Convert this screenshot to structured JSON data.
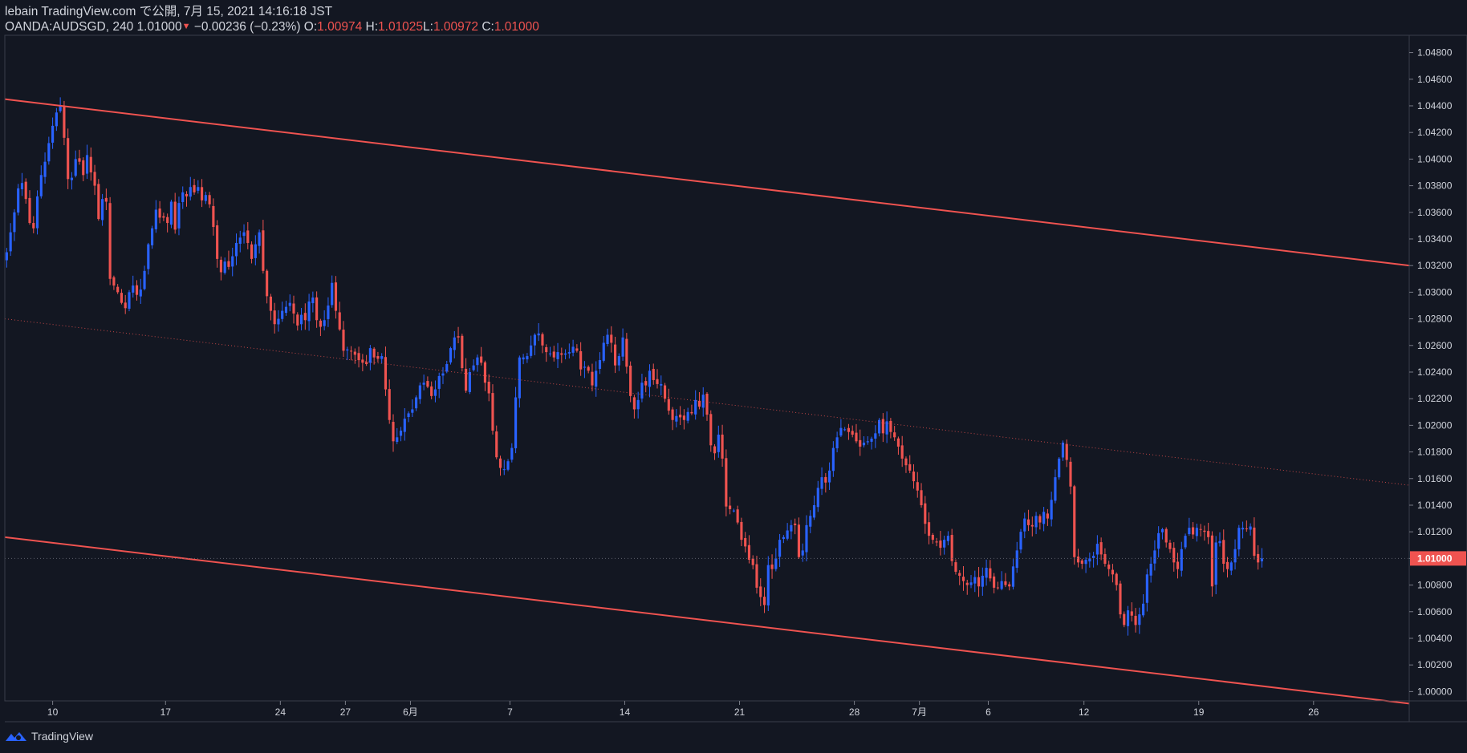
{
  "header": {
    "publish_line": "lebain TradingView.com で公開, 7月 15, 2021 14:16:18 JST",
    "symbol": "OANDA:AUDSGD, 240",
    "last": "1.01000",
    "change": "−0.00236 (−0.23%)",
    "o_label": "O:",
    "o_value": "1.00974",
    "h_label": "H:",
    "h_value": "1.01025",
    "l_label": "L:",
    "l_value": "1.00972",
    "c_label": "C:",
    "c_value": "1.01000"
  },
  "footer": {
    "brand": "TradingView"
  },
  "colors": {
    "background": "#131722",
    "up": "#2962ff",
    "down": "#ef5350",
    "trendline": "#ef5350",
    "axis_text": "#d1d4dc",
    "price_tag_bg": "#ef5350"
  },
  "chart_data": {
    "type": "candlestick",
    "title": "OANDA:AUDSGD, 240",
    "ylim": [
      0.9993,
      1.0493
    ],
    "y_ticks": [
      "1.04800",
      "1.04600",
      "1.04400",
      "1.04200",
      "1.04000",
      "1.03800",
      "1.03600",
      "1.03400",
      "1.03200",
      "1.03000",
      "1.02800",
      "1.02600",
      "1.02400",
      "1.02200",
      "1.02000",
      "1.01800",
      "1.01600",
      "1.01400",
      "1.01200",
      "1.01000",
      "1.00800",
      "1.00600",
      "1.00400",
      "1.00200",
      "1.00000"
    ],
    "current_price": "1.01000",
    "x_ticks": [
      {
        "label": "10",
        "bar": 12.5
      },
      {
        "label": "17",
        "bar": 42
      },
      {
        "label": "24",
        "bar": 72
      },
      {
        "label": "27",
        "bar": 89
      },
      {
        "label": "6月",
        "bar": 106
      },
      {
        "label": "7",
        "bar": 132
      },
      {
        "label": "14",
        "bar": 162
      },
      {
        "label": "21",
        "bar": 192
      },
      {
        "label": "28",
        "bar": 222
      },
      {
        "label": "7月",
        "bar": 239
      },
      {
        "label": "6",
        "bar": 257
      },
      {
        "label": "12",
        "bar": 282
      },
      {
        "label": "19",
        "bar": 312
      },
      {
        "label": "26",
        "bar": 342
      }
    ],
    "bars_visible": 367,
    "trendlines": [
      {
        "name": "channel-upper",
        "from": {
          "bar": 0,
          "price": 1.0445
        },
        "to": {
          "bar": 367,
          "price": 1.032
        },
        "style": "solid"
      },
      {
        "name": "channel-lower",
        "from": {
          "bar": 0,
          "price": 1.0116
        },
        "to": {
          "bar": 367,
          "price": 0.9991
        },
        "style": "solid"
      },
      {
        "name": "channel-middle",
        "from": {
          "bar": 0,
          "price": 1.028
        },
        "to": {
          "bar": 367,
          "price": 1.0155
        },
        "style": "dotted"
      }
    ],
    "closes": [
      1.033,
      1.0345,
      1.036,
      1.0378,
      1.0382,
      1.037,
      1.0352,
      1.0348,
      1.0372,
      1.0388,
      1.0398,
      1.0412,
      1.0425,
      1.0435,
      1.044,
      1.0416,
      1.0385,
      1.0386,
      1.04,
      1.0398,
      1.0388,
      1.0403,
      1.039,
      1.038,
      1.0355,
      1.037,
      1.0368,
      1.031,
      1.0305,
      1.03,
      1.0292,
      1.0288,
      1.03,
      1.0305,
      1.0298,
      1.0302,
      1.0316,
      1.0336,
      1.0348,
      1.0362,
      1.0356,
      1.0356,
      1.0352,
      1.0368,
      1.0347,
      1.0367,
      1.0375,
      1.0372,
      1.0379,
      1.0375,
      1.0379,
      1.0369,
      1.0373,
      1.0366,
      1.0349,
      1.0325,
      1.0315,
      1.0323,
      1.0319,
      1.0327,
      1.0337,
      1.0341,
      1.0345,
      1.0337,
      1.0325,
      1.0336,
      1.0345,
      1.0316,
      1.0297,
      1.0286,
      1.0276,
      1.028,
      1.0286,
      1.0289,
      1.0292,
      1.0284,
      1.0275,
      1.0283,
      1.0279,
      1.0293,
      1.0296,
      1.0279,
      1.0274,
      1.0279,
      1.029,
      1.0307,
      1.0286,
      1.0272,
      1.0256,
      1.0257,
      1.0256,
      1.0253,
      1.0249,
      1.0247,
      1.0246,
      1.0258,
      1.0251,
      1.025,
      1.0252,
      1.0227,
      1.0204,
      1.0188,
      1.0191,
      1.0196,
      1.0205,
      1.0209,
      1.0212,
      1.0221,
      1.023,
      1.0232,
      1.0229,
      1.0222,
      1.0227,
      1.0237,
      1.0239,
      1.0246,
      1.0258,
      1.0266,
      1.0266,
      1.0243,
      1.0226,
      1.024,
      1.0245,
      1.0251,
      1.0247,
      1.0232,
      1.0224,
      1.0196,
      1.0176,
      1.0168,
      1.0167,
      1.0173,
      1.0183,
      1.0221,
      1.0251,
      1.0251,
      1.0252,
      1.026,
      1.0268,
      1.0269,
      1.026,
      1.0255,
      1.0254,
      1.0251,
      1.0255,
      1.0253,
      1.0254,
      1.0255,
      1.0259,
      1.0256,
      1.0242,
      1.0244,
      1.0241,
      1.023,
      1.0241,
      1.0249,
      1.0262,
      1.0268,
      1.0262,
      1.0245,
      1.0252,
      1.0266,
      1.0244,
      1.0222,
      1.0212,
      1.0219,
      1.0232,
      1.023,
      1.0241,
      1.0234,
      1.0231,
      1.0231,
      1.022,
      1.0211,
      1.0204,
      1.0207,
      1.0206,
      1.0204,
      1.021,
      1.0209,
      1.0219,
      1.0214,
      1.0223,
      1.0208,
      1.0185,
      1.0179,
      1.0193,
      1.0175,
      1.0139,
      1.0137,
      1.0136,
      1.0127,
      1.0114,
      1.0109,
      1.0099,
      1.0095,
      1.0078,
      1.0071,
      1.0065,
      1.0095,
      1.0092,
      1.01,
      1.0114,
      1.0116,
      1.0121,
      1.0125,
      1.0125,
      1.0101,
      1.0106,
      1.0125,
      1.0132,
      1.014,
      1.0153,
      1.0161,
      1.0157,
      1.0166,
      1.0183,
      1.0191,
      1.0198,
      1.0197,
      1.0195,
      1.0193,
      1.0188,
      1.0184,
      1.0187,
      1.0188,
      1.019,
      1.0194,
      1.0204,
      1.0194,
      1.0203,
      1.0195,
      1.0191,
      1.0184,
      1.0175,
      1.017,
      1.0166,
      1.0158,
      1.0151,
      1.014,
      1.0126,
      1.0117,
      1.0114,
      1.0112,
      1.0108,
      1.0114,
      1.0117,
      1.0098,
      1.009,
      1.0087,
      1.0083,
      1.008,
      1.0082,
      1.0086,
      1.0079,
      1.0087,
      1.0093,
      1.0085,
      1.0078,
      1.0078,
      1.0083,
      1.008,
      1.0079,
      1.0094,
      1.0106,
      1.012,
      1.013,
      1.0125,
      1.0124,
      1.0132,
      1.0127,
      1.0135,
      1.013,
      1.0144,
      1.0161,
      1.0175,
      1.0187,
      1.0174,
      1.0154,
      1.0101,
      1.0097,
      1.0096,
      1.0099,
      1.01,
      1.0102,
      1.0111,
      1.0103,
      1.0096,
      1.0092,
      1.0088,
      1.008,
      1.0058,
      1.005,
      1.0061,
      1.0057,
      1.005,
      1.0058,
      1.0066,
      1.0088,
      1.0096,
      1.0106,
      1.0119,
      1.0122,
      1.0112,
      1.0107,
      1.0097,
      1.0092,
      1.0107,
      1.0117,
      1.0123,
      1.0118,
      1.0123,
      1.0122,
      1.012,
      1.0116,
      1.0079,
      1.0112,
      1.0113,
      1.0096,
      1.0092,
      1.0097,
      1.0107,
      1.0123,
      1.0123,
      1.0122,
      1.0124,
      1.0102,
      1.0097,
      1.01
    ]
  }
}
